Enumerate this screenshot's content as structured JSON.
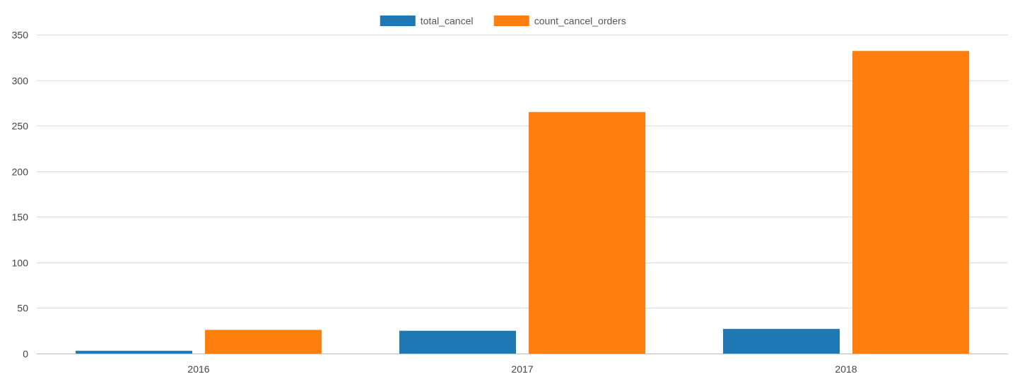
{
  "chart_data": {
    "type": "bar",
    "categories": [
      "2016",
      "2017",
      "2018"
    ],
    "series": [
      {
        "name": "total_cancel",
        "values": [
          3,
          25,
          27
        ],
        "color": "#1f77b4"
      },
      {
        "name": "count_cancel_orders",
        "values": [
          26,
          265,
          332
        ],
        "color": "#ff7f0e"
      }
    ],
    "xlabel": "",
    "ylabel": "",
    "ylim": [
      0,
      350
    ],
    "yticks": [
      0,
      50,
      100,
      150,
      200,
      250,
      300,
      350
    ],
    "grid": true,
    "legend_position": "top-center"
  }
}
